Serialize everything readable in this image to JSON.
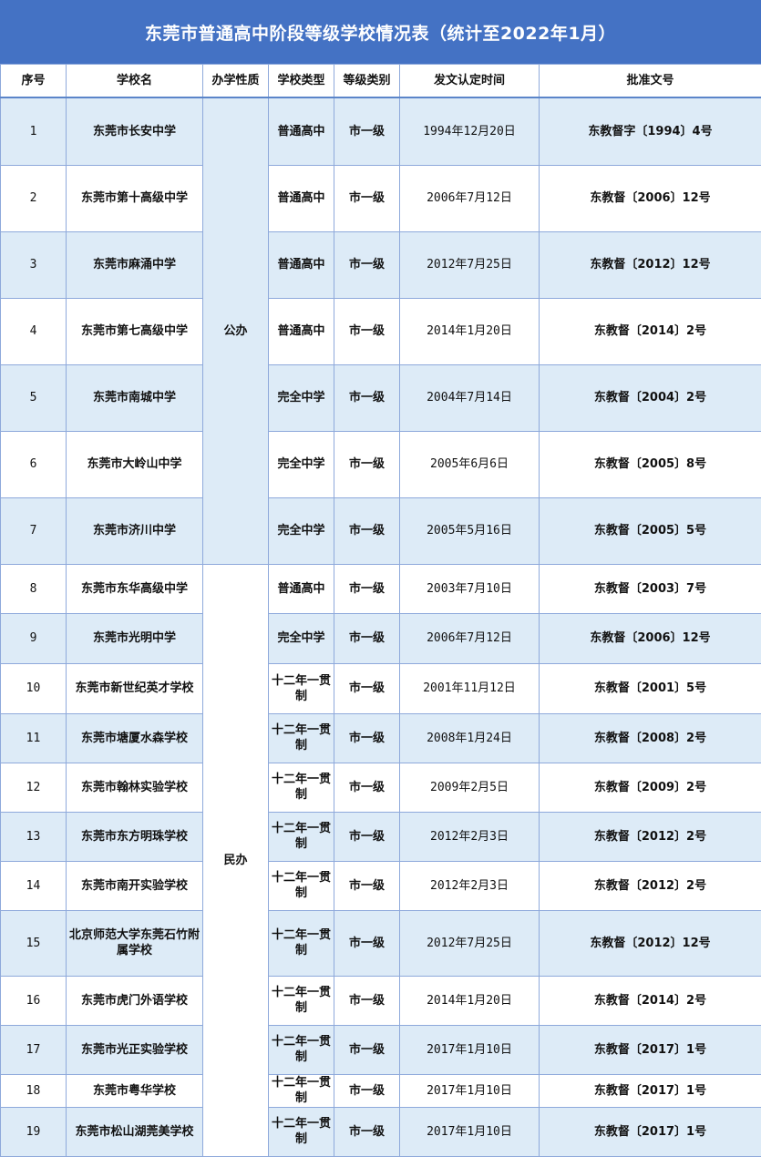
{
  "title": "东莞市普通高中阶段等级学校情况表（统计至2022年1月）",
  "colors": {
    "title_bg": "#4472C4",
    "stripe": "#DDEBF7",
    "border": "#8EA9DB"
  },
  "columns": [
    "序号",
    "学校名",
    "办学性质",
    "学校类型",
    "等级类别",
    "发文认定时间",
    "批准文号"
  ],
  "groups": [
    "公办",
    "民办"
  ],
  "rows": [
    {
      "no": "1",
      "name": "东莞市长安中学",
      "type": "普通高中",
      "level": "市一级",
      "date": "1994年12月20日",
      "doc": "东教督字〔1994〕4号"
    },
    {
      "no": "2",
      "name": "东莞市第十高级中学",
      "type": "普通高中",
      "level": "市一级",
      "date": "2006年7月12日",
      "doc": "东教督〔2006〕12号"
    },
    {
      "no": "3",
      "name": "东莞市麻涌中学",
      "type": "普通高中",
      "level": "市一级",
      "date": "2012年7月25日",
      "doc": "东教督〔2012〕12号"
    },
    {
      "no": "4",
      "name": "东莞市第七高级中学",
      "type": "普通高中",
      "level": "市一级",
      "date": "2014年1月20日",
      "doc": "东教督〔2014〕2号"
    },
    {
      "no": "5",
      "name": "东莞市南城中学",
      "type": "完全中学",
      "level": "市一级",
      "date": "2004年7月14日",
      "doc": "东教督〔2004〕2号"
    },
    {
      "no": "6",
      "name": "东莞市大岭山中学",
      "type": "完全中学",
      "level": "市一级",
      "date": "2005年6月6日",
      "doc": "东教督〔2005〕8号"
    },
    {
      "no": "7",
      "name": "东莞市济川中学",
      "type": "完全中学",
      "level": "市一级",
      "date": "2005年5月16日",
      "doc": "东教督〔2005〕5号"
    },
    {
      "no": "8",
      "name": "东莞市东华高级中学",
      "type": "普通高中",
      "level": "市一级",
      "date": "2003年7月10日",
      "doc": "东教督〔2003〕7号"
    },
    {
      "no": "9",
      "name": "东莞市光明中学",
      "type": "完全中学",
      "level": "市一级",
      "date": "2006年7月12日",
      "doc": "东教督〔2006〕12号"
    },
    {
      "no": "10",
      "name": "东莞市新世纪英才学校",
      "type": "十二年一贯制",
      "level": "市一级",
      "date": "2001年11月12日",
      "doc": "东教督〔2001〕5号"
    },
    {
      "no": "11",
      "name": "东莞市塘厦水森学校",
      "type": "十二年一贯制",
      "level": "市一级",
      "date": "2008年1月24日",
      "doc": "东教督〔2008〕2号"
    },
    {
      "no": "12",
      "name": "东莞市翰林实验学校",
      "type": "十二年一贯制",
      "level": "市一级",
      "date": "2009年2月5日",
      "doc": "东教督〔2009〕2号"
    },
    {
      "no": "13",
      "name": "东莞市东方明珠学校",
      "type": "十二年一贯制",
      "level": "市一级",
      "date": "2012年2月3日",
      "doc": "东教督〔2012〕2号"
    },
    {
      "no": "14",
      "name": "东莞市南开实验学校",
      "type": "十二年一贯制",
      "level": "市一级",
      "date": "2012年2月3日",
      "doc": "东教督〔2012〕2号"
    },
    {
      "no": "15",
      "name": "北京师范大学东莞石竹附属学校",
      "type": "十二年一贯制",
      "level": "市一级",
      "date": "2012年7月25日",
      "doc": "东教督〔2012〕12号"
    },
    {
      "no": "16",
      "name": "东莞市虎门外语学校",
      "type": "十二年一贯制",
      "level": "市一级",
      "date": "2014年1月20日",
      "doc": "东教督〔2014〕2号"
    },
    {
      "no": "17",
      "name": "东莞市光正实验学校",
      "type": "十二年一贯制",
      "level": "市一级",
      "date": "2017年1月10日",
      "doc": "东教督〔2017〕1号"
    },
    {
      "no": "18",
      "name": "东莞市粤华学校",
      "type": "十二年一贯制",
      "level": "市一级",
      "date": "2017年1月10日",
      "doc": "东教督〔2017〕1号"
    },
    {
      "no": "19",
      "name": "东莞市松山湖莞美学校",
      "type": "十二年一贯制",
      "level": "市一级",
      "date": "2017年1月10日",
      "doc": "东教督〔2017〕1号"
    }
  ]
}
